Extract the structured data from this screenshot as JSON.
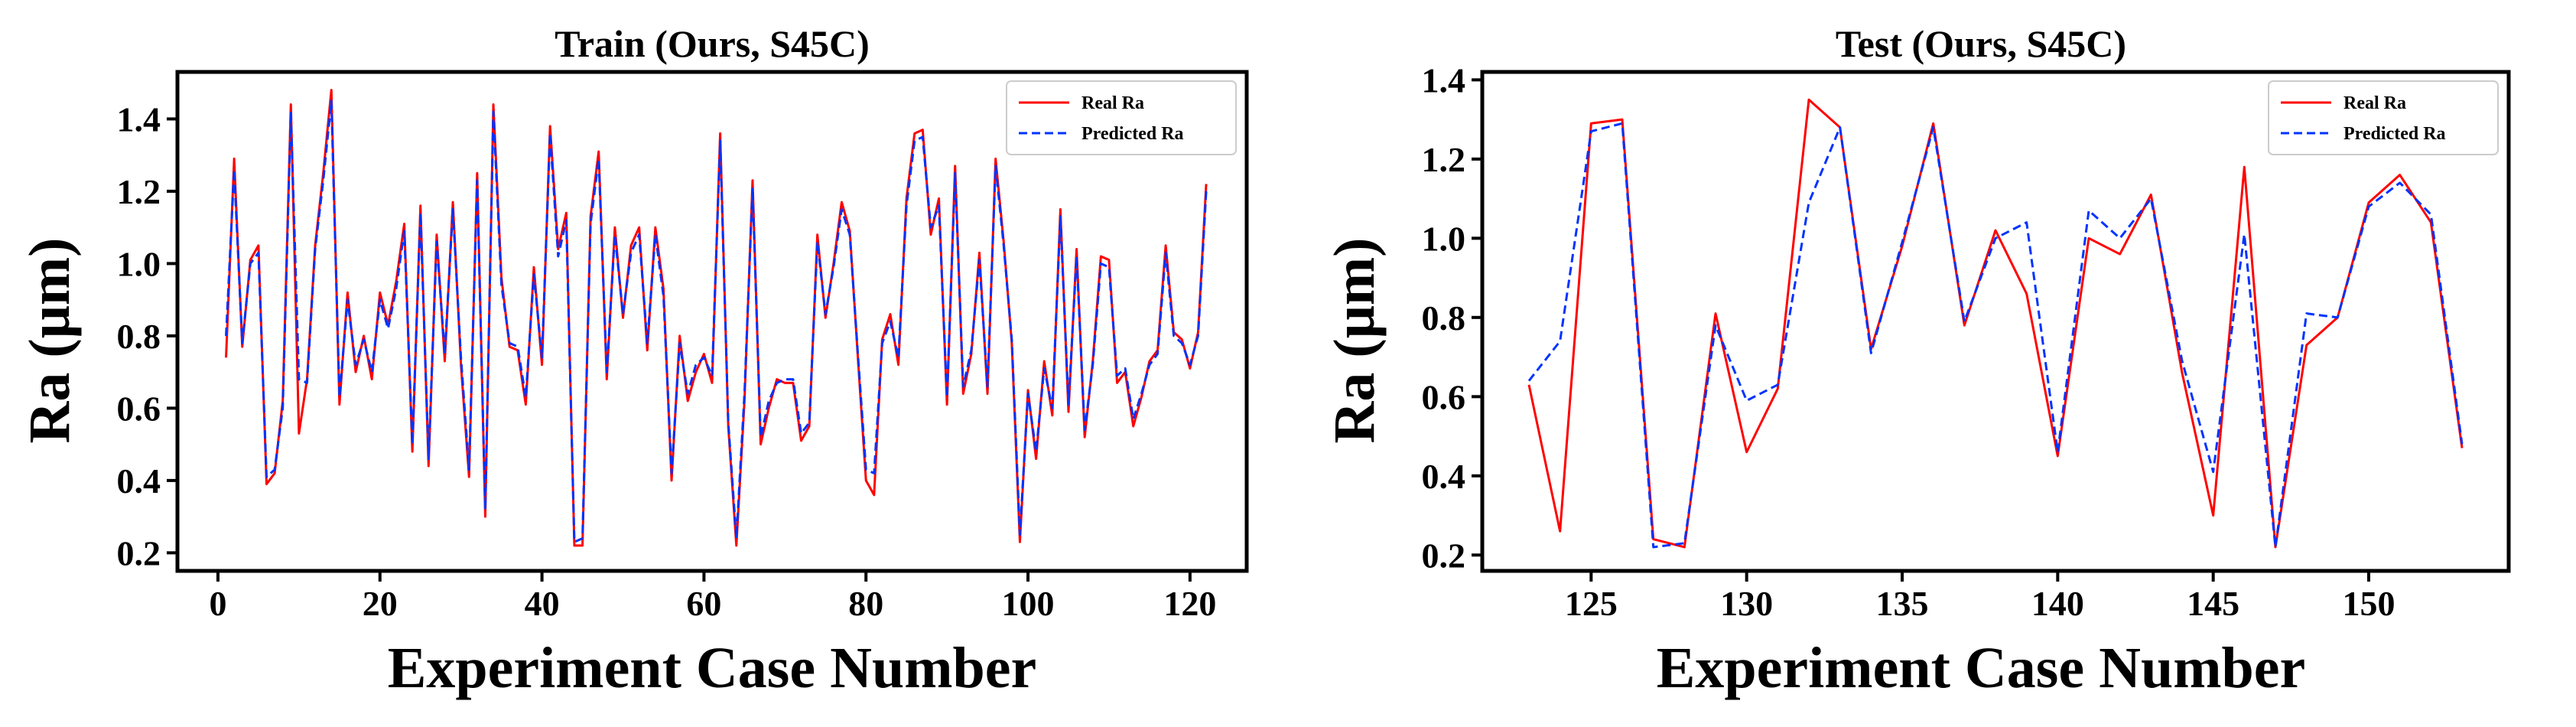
{
  "chart_data": [
    {
      "type": "line",
      "title": "Train (Ours, S45C)",
      "xlabel": "Experiment Case Number",
      "ylabel": "Ra (μm)",
      "xlim": [
        -5,
        127
      ],
      "ylim": [
        0.15,
        1.53
      ],
      "xticks": [
        0,
        20,
        40,
        60,
        80,
        100,
        120
      ],
      "xtick_labels": [
        "0",
        "20",
        "40",
        "60",
        "80",
        "100",
        "120"
      ],
      "yticks": [
        0.2,
        0.4,
        0.6,
        0.8,
        1.0,
        1.2,
        1.4
      ],
      "ytick_labels": [
        "0.2",
        "0.4",
        "0.6",
        "0.8",
        "1.0",
        "1.2",
        "1.4"
      ],
      "legend_position": "top-right",
      "x": [
        1,
        2,
        3,
        4,
        5,
        6,
        7,
        8,
        9,
        10,
        11,
        12,
        13,
        14,
        15,
        16,
        17,
        18,
        19,
        20,
        21,
        22,
        23,
        24,
        25,
        26,
        27,
        28,
        29,
        30,
        31,
        32,
        33,
        34,
        35,
        36,
        37,
        38,
        39,
        40,
        41,
        42,
        43,
        44,
        45,
        46,
        47,
        48,
        49,
        50,
        51,
        52,
        53,
        54,
        55,
        56,
        57,
        58,
        59,
        60,
        61,
        62,
        63,
        64,
        65,
        66,
        67,
        68,
        69,
        70,
        71,
        72,
        73,
        74,
        75,
        76,
        77,
        78,
        79,
        80,
        81,
        82,
        83,
        84,
        85,
        86,
        87,
        88,
        89,
        90,
        91,
        92,
        93,
        94,
        95,
        96,
        97,
        98,
        99,
        100,
        101,
        102,
        103,
        104,
        105,
        106,
        107,
        108,
        109,
        110,
        111,
        112,
        113,
        114,
        115,
        116,
        117,
        118,
        119,
        120,
        121,
        122
      ],
      "series": [
        {
          "name": "Real Ra",
          "color": "#ff0000",
          "style": "solid",
          "values": [
            0.74,
            1.29,
            0.77,
            1.01,
            1.05,
            0.39,
            0.42,
            0.62,
            1.44,
            0.53,
            0.68,
            1.05,
            1.25,
            1.48,
            0.61,
            0.92,
            0.7,
            0.8,
            0.68,
            0.92,
            0.83,
            0.95,
            1.11,
            0.48,
            1.16,
            0.44,
            1.08,
            0.73,
            1.17,
            0.72,
            0.41,
            1.25,
            0.3,
            1.44,
            0.96,
            0.77,
            0.76,
            0.61,
            0.99,
            0.72,
            1.38,
            1.04,
            1.14,
            0.22,
            0.22,
            1.13,
            1.31,
            0.68,
            1.1,
            0.85,
            1.05,
            1.1,
            0.76,
            1.1,
            0.93,
            0.4,
            0.8,
            0.62,
            0.7,
            0.75,
            0.67,
            1.36,
            0.55,
            0.22,
            0.62,
            1.23,
            0.5,
            0.6,
            0.68,
            0.67,
            0.67,
            0.51,
            0.55,
            1.08,
            0.85,
            1.0,
            1.17,
            1.09,
            0.74,
            0.4,
            0.36,
            0.79,
            0.86,
            0.72,
            1.18,
            1.36,
            1.37,
            1.08,
            1.18,
            0.61,
            1.27,
            0.64,
            0.75,
            1.03,
            0.64,
            1.29,
            1.06,
            0.78,
            0.23,
            0.65,
            0.46,
            0.73,
            0.58,
            1.15,
            0.59,
            1.04,
            0.52,
            0.73,
            1.02,
            1.01,
            0.67,
            0.7,
            0.55,
            0.63,
            0.73,
            0.76,
            1.05,
            0.81,
            0.79,
            0.71,
            0.81,
            1.22
          ]
        },
        {
          "name": "Predicted Ra",
          "color": "#0033ff",
          "style": "dashed",
          "values": [
            0.8,
            1.26,
            0.78,
            1.0,
            1.03,
            0.41,
            0.43,
            0.6,
            1.42,
            0.68,
            0.67,
            1.04,
            1.23,
            1.45,
            0.63,
            0.9,
            0.72,
            0.79,
            0.7,
            0.9,
            0.82,
            0.93,
            1.09,
            0.5,
            1.14,
            0.46,
            1.06,
            0.75,
            1.15,
            0.74,
            0.43,
            1.23,
            0.32,
            1.42,
            0.94,
            0.78,
            0.77,
            0.63,
            0.97,
            0.74,
            1.36,
            1.02,
            1.12,
            0.23,
            0.24,
            1.11,
            1.29,
            0.7,
            1.08,
            0.86,
            1.03,
            1.08,
            0.78,
            1.08,
            0.91,
            0.42,
            0.78,
            0.64,
            0.72,
            0.74,
            0.69,
            1.34,
            0.56,
            0.24,
            0.64,
            1.21,
            0.52,
            0.62,
            0.67,
            0.68,
            0.68,
            0.53,
            0.56,
            1.06,
            0.86,
            0.99,
            1.15,
            1.08,
            0.75,
            0.43,
            0.42,
            0.78,
            0.84,
            0.74,
            1.16,
            1.34,
            1.35,
            1.1,
            1.16,
            0.63,
            1.25,
            0.66,
            0.76,
            1.01,
            0.66,
            1.27,
            1.05,
            0.79,
            0.25,
            0.64,
            0.48,
            0.71,
            0.6,
            1.13,
            0.61,
            1.02,
            0.54,
            0.72,
            1.0,
            0.99,
            0.69,
            0.71,
            0.57,
            0.64,
            0.72,
            0.75,
            1.03,
            0.8,
            0.78,
            0.72,
            0.8,
            1.2
          ]
        }
      ]
    },
    {
      "type": "line",
      "title": "Test (Ours, S45C)",
      "xlabel": "Experiment Case Number",
      "ylabel": "Ra (μm)",
      "xlim": [
        121.5,
        154.5
      ],
      "ylim": [
        0.16,
        1.42
      ],
      "xticks": [
        125,
        130,
        135,
        140,
        145,
        150
      ],
      "xtick_labels": [
        "125",
        "130",
        "135",
        "140",
        "145",
        "150"
      ],
      "yticks": [
        0.2,
        0.4,
        0.6,
        0.8,
        1.0,
        1.2,
        1.4
      ],
      "ytick_labels": [
        "0.2",
        "0.4",
        "0.6",
        "0.8",
        "1.0",
        "1.2",
        "1.4"
      ],
      "legend_position": "top-right",
      "x": [
        123,
        124,
        125,
        126,
        127,
        128,
        129,
        130,
        131,
        132,
        133,
        134,
        135,
        136,
        137,
        138,
        139,
        140,
        141,
        142,
        143,
        144,
        145,
        146,
        147,
        148,
        149,
        150,
        151,
        152,
        153
      ],
      "series": [
        {
          "name": "Real Ra",
          "color": "#ff0000",
          "style": "solid",
          "values": [
            0.63,
            0.26,
            1.29,
            1.3,
            0.24,
            0.22,
            0.81,
            0.46,
            0.62,
            1.35,
            1.28,
            0.72,
            0.98,
            1.29,
            0.78,
            1.02,
            0.86,
            0.45,
            1.0,
            0.96,
            1.11,
            0.66,
            0.3,
            1.18,
            0.22,
            0.73,
            0.8,
            1.09,
            1.16,
            1.04,
            0.47
          ]
        },
        {
          "name": "Predicted Ra",
          "color": "#0033ff",
          "style": "dashed",
          "values": [
            0.64,
            0.74,
            1.27,
            1.29,
            0.22,
            0.23,
            0.78,
            0.59,
            0.63,
            1.09,
            1.28,
            0.71,
            0.99,
            1.28,
            0.79,
            1.0,
            1.04,
            0.46,
            1.07,
            1.0,
            1.1,
            0.69,
            0.41,
            1.01,
            0.22,
            0.81,
            0.8,
            1.08,
            1.14,
            1.06,
            0.48
          ]
        }
      ]
    }
  ]
}
